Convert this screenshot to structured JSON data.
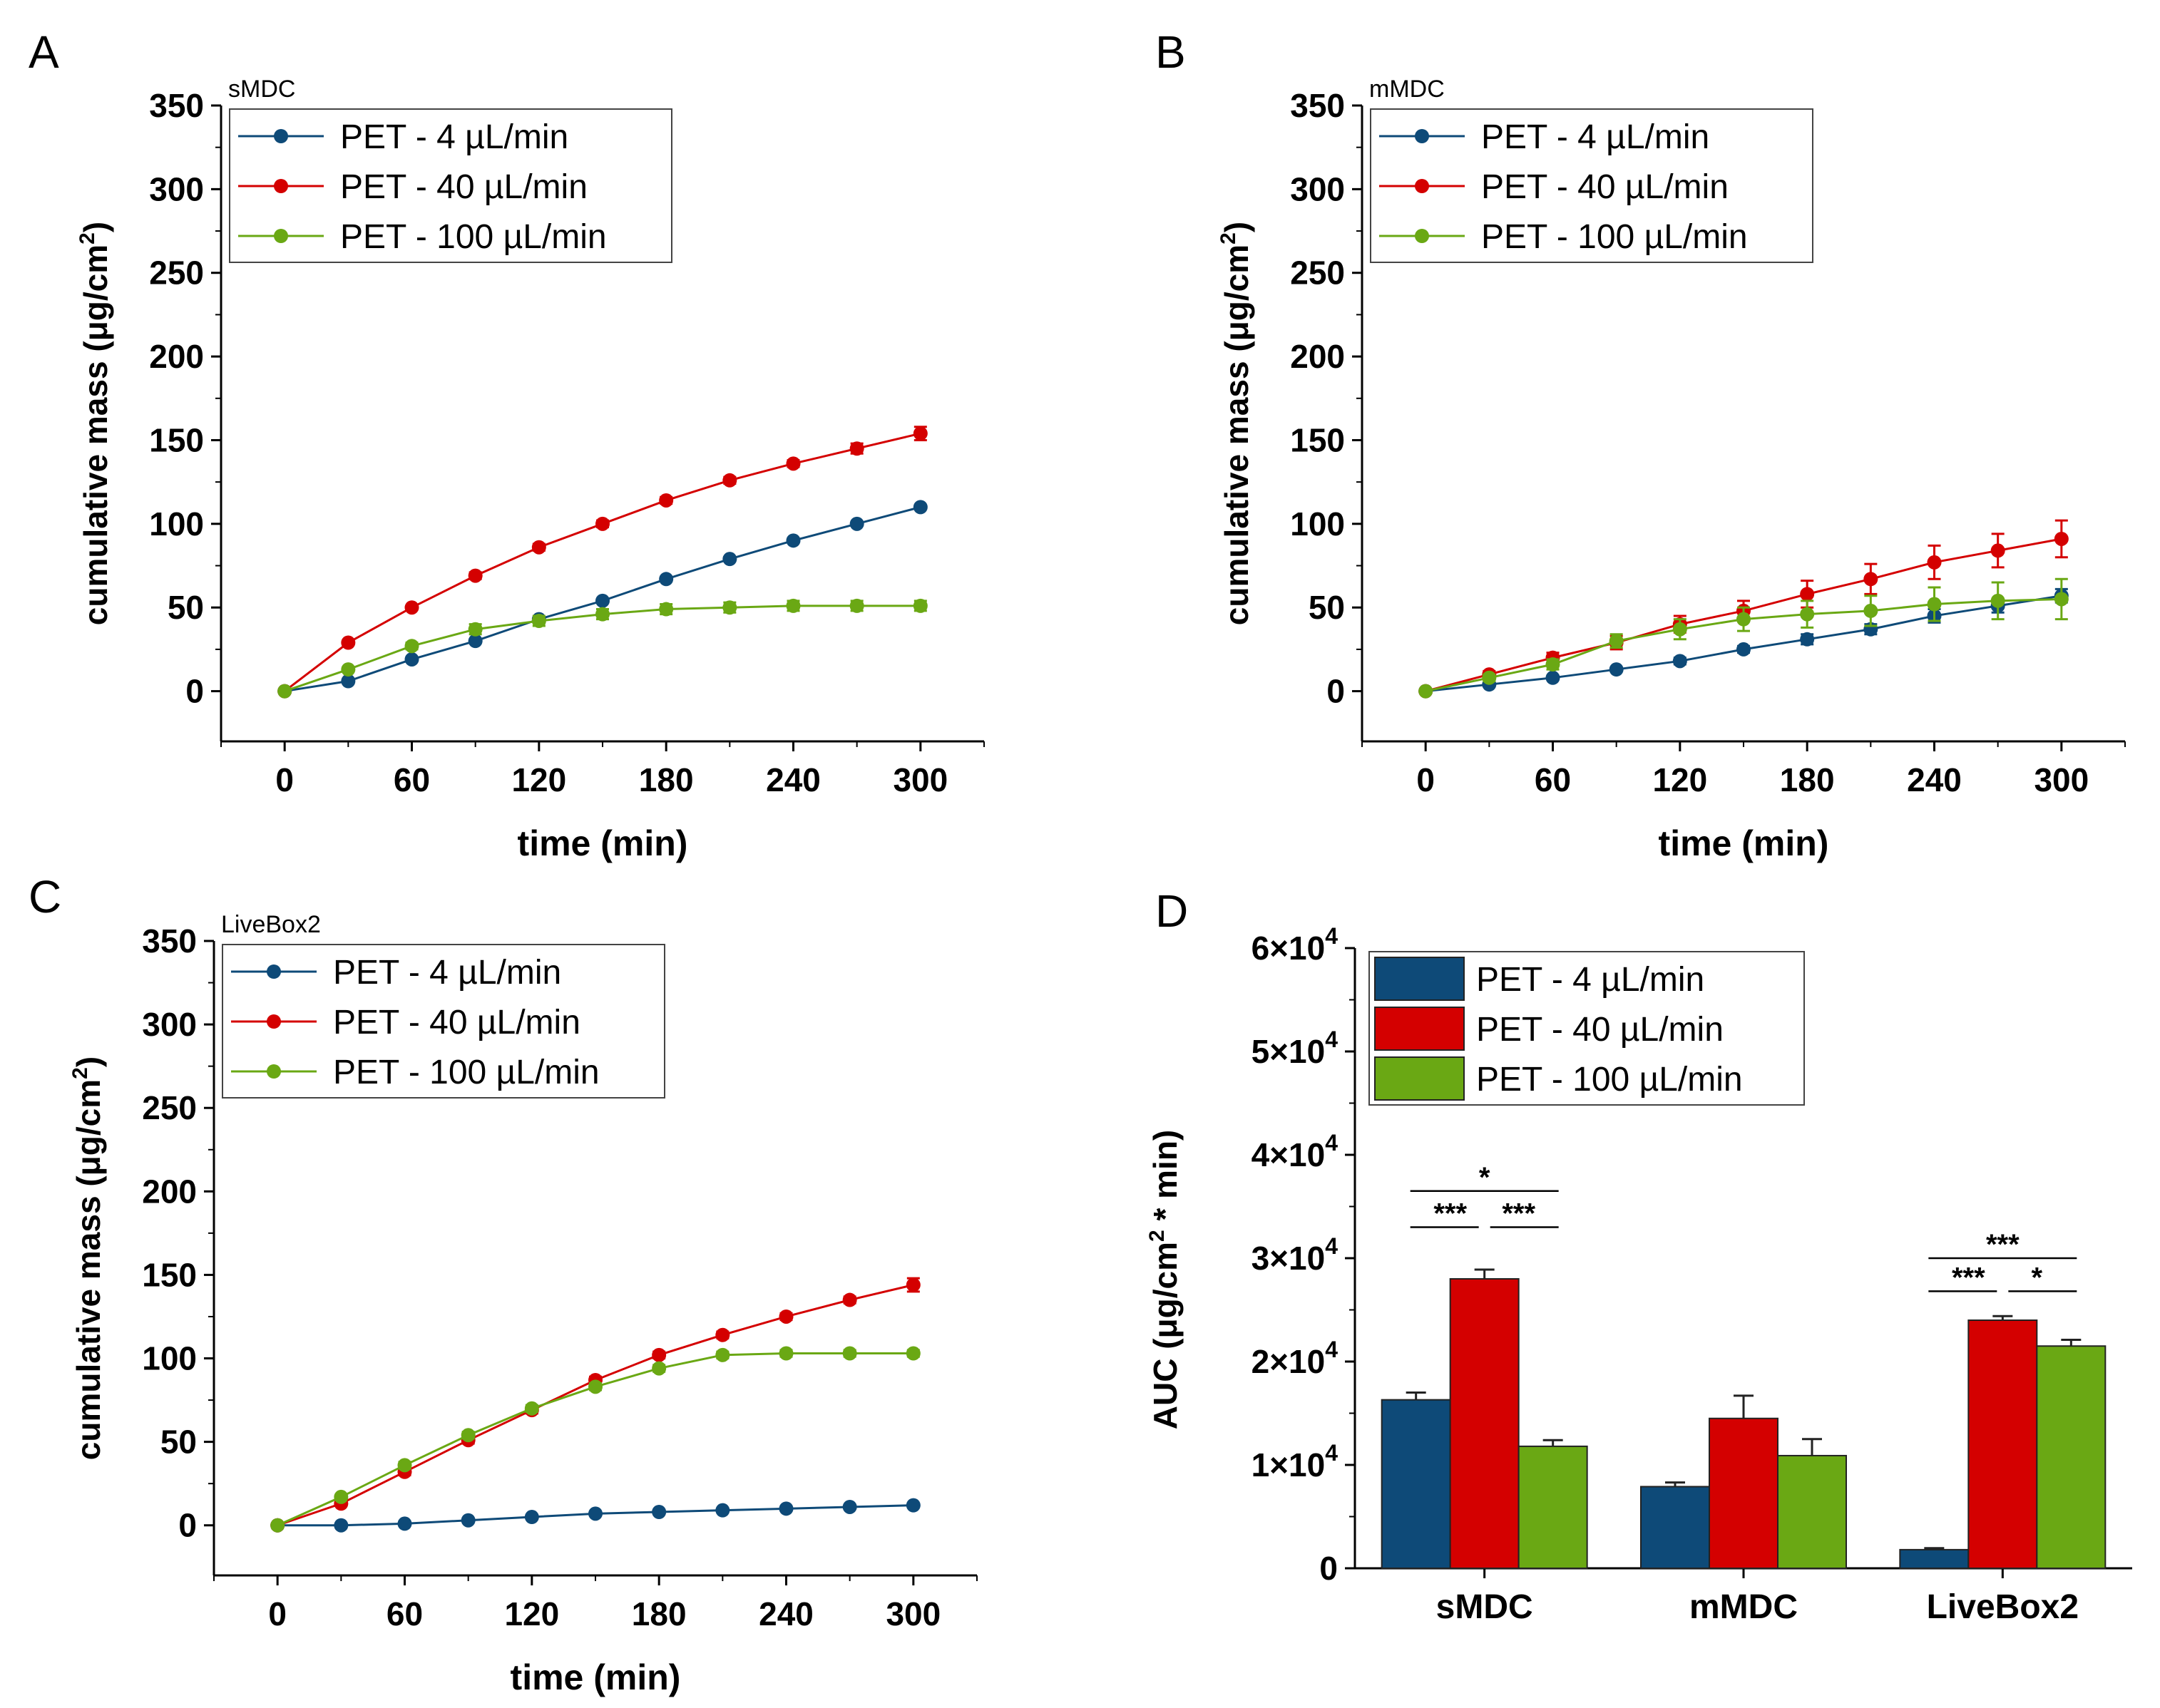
{
  "figure": {
    "panels": [
      "A",
      "B",
      "C",
      "D"
    ]
  },
  "colors": {
    "flow4": "#0e4a78",
    "flow40": "#d40000",
    "flow100": "#6aa814"
  },
  "chart_data": [
    {
      "panel": "A",
      "type": "line",
      "title": "sMDC",
      "xlabel": "time (min)",
      "ylabel": "cumulative mass (μg/cm²)",
      "xlim": [
        -30,
        330
      ],
      "ylim": [
        -30,
        350
      ],
      "xticks": [
        0,
        60,
        120,
        180,
        240,
        300
      ],
      "yticks": [
        0,
        50,
        100,
        150,
        200,
        250,
        300,
        350
      ],
      "x": [
        0,
        30,
        60,
        90,
        120,
        150,
        180,
        210,
        240,
        270,
        300
      ],
      "series": [
        {
          "name": "PET - 4 µL/min",
          "color": "#0e4a78",
          "values": [
            0,
            6,
            19,
            30,
            43,
            54,
            67,
            79,
            90,
            100,
            110
          ],
          "errors": [
            0,
            1,
            1,
            1,
            1,
            1,
            1,
            1,
            1,
            1,
            1
          ]
        },
        {
          "name": "PET - 40 µL/min",
          "color": "#d40000",
          "values": [
            0,
            29,
            50,
            69,
            86,
            100,
            114,
            126,
            136,
            145,
            154
          ],
          "errors": [
            0,
            1,
            1,
            2,
            2,
            2,
            2,
            2,
            2,
            3,
            4
          ]
        },
        {
          "name": "PET - 100 µL/min",
          "color": "#6aa814",
          "values": [
            0,
            13,
            27,
            37,
            42,
            46,
            49,
            50,
            51,
            51,
            51
          ],
          "errors": [
            0,
            1,
            2,
            3,
            3,
            3,
            3,
            3,
            3,
            3,
            3
          ]
        }
      ]
    },
    {
      "panel": "B",
      "type": "line",
      "title": "mMDC",
      "xlabel": "time (min)",
      "ylabel": "cumulative mass (μg/cm²)",
      "xlim": [
        -30,
        330
      ],
      "ylim": [
        -30,
        350
      ],
      "xticks": [
        0,
        60,
        120,
        180,
        240,
        300
      ],
      "yticks": [
        0,
        50,
        100,
        150,
        200,
        250,
        300,
        350
      ],
      "x": [
        0,
        30,
        60,
        90,
        120,
        150,
        180,
        210,
        240,
        270,
        300
      ],
      "series": [
        {
          "name": "PET - 4 µL/min",
          "color": "#0e4a78",
          "values": [
            0,
            4,
            8,
            13,
            18,
            25,
            31,
            37,
            45,
            51,
            57
          ],
          "errors": [
            0,
            1,
            1,
            1,
            2,
            2,
            3,
            3,
            4,
            4,
            4
          ]
        },
        {
          "name": "PET - 40 µL/min",
          "color": "#d40000",
          "values": [
            0,
            10,
            20,
            29,
            40,
            48,
            58,
            67,
            77,
            84,
            91
          ],
          "errors": [
            0,
            2,
            3,
            4,
            5,
            6,
            8,
            9,
            10,
            10,
            11
          ]
        },
        {
          "name": "PET - 100 µL/min",
          "color": "#6aa814",
          "values": [
            0,
            8,
            16,
            30,
            37,
            43,
            46,
            48,
            52,
            54,
            55
          ],
          "errors": [
            0,
            2,
            3,
            4,
            6,
            7,
            8,
            9,
            10,
            11,
            12
          ]
        }
      ]
    },
    {
      "panel": "C",
      "type": "line",
      "title": "LiveBox2",
      "xlabel": "time (min)",
      "ylabel": "cumulative mass (μg/cm²)",
      "xlim": [
        -30,
        330
      ],
      "ylim": [
        -30,
        350
      ],
      "xticks": [
        0,
        60,
        120,
        180,
        240,
        300
      ],
      "yticks": [
        0,
        50,
        100,
        150,
        200,
        250,
        300,
        350
      ],
      "x": [
        0,
        30,
        60,
        90,
        120,
        150,
        180,
        210,
        240,
        270,
        300
      ],
      "series": [
        {
          "name": "PET - 4 µL/min",
          "color": "#0e4a78",
          "values": [
            0,
            0,
            1,
            3,
            5,
            7,
            8,
            9,
            10,
            11,
            12
          ],
          "errors": [
            0,
            0,
            0,
            0,
            0,
            0,
            0,
            0,
            0,
            0,
            1
          ]
        },
        {
          "name": "PET - 40 µL/min",
          "color": "#d40000",
          "values": [
            0,
            13,
            32,
            51,
            69,
            87,
            102,
            114,
            125,
            135,
            144
          ],
          "errors": [
            0,
            1,
            2,
            2,
            2,
            2,
            2,
            2,
            2,
            2,
            4
          ]
        },
        {
          "name": "PET - 100 µL/min",
          "color": "#6aa814",
          "values": [
            0,
            17,
            36,
            54,
            70,
            83,
            94,
            102,
            103,
            103,
            103
          ],
          "errors": [
            0,
            1,
            2,
            2,
            2,
            2,
            2,
            2,
            2,
            2,
            2
          ]
        }
      ]
    },
    {
      "panel": "D",
      "type": "bar",
      "title": "",
      "xlabel": "",
      "ylabel": "AUC (μg/cm² * min)",
      "ylim": [
        0,
        60000
      ],
      "yticks": [
        0,
        10000,
        20000,
        30000,
        40000,
        50000,
        60000
      ],
      "ytick_labels": [
        {
          "mantissa": "0",
          "exp": ""
        },
        {
          "mantissa": "1×10",
          "exp": "4"
        },
        {
          "mantissa": "2×10",
          "exp": "4"
        },
        {
          "mantissa": "3×10",
          "exp": "4"
        },
        {
          "mantissa": "4×10",
          "exp": "4"
        },
        {
          "mantissa": "5×10",
          "exp": "4"
        },
        {
          "mantissa": "6×10",
          "exp": "4"
        }
      ],
      "categories": [
        "sMDC",
        "mMDC",
        "LiveBox2"
      ],
      "series": [
        {
          "name": "PET  - 4 µL/min",
          "color": "#0e4a78",
          "values": [
            16300,
            7900,
            1800
          ],
          "errors": [
            700,
            400,
            150
          ]
        },
        {
          "name": "PET - 40 µL/min",
          "color": "#d40000",
          "values": [
            28000,
            14500,
            24000
          ],
          "errors": [
            900,
            2200,
            400
          ]
        },
        {
          "name": "PET - 100 µL/min",
          "color": "#6aa814",
          "values": [
            11800,
            10900,
            21500
          ],
          "errors": [
            600,
            1600,
            600
          ]
        }
      ],
      "significance": [
        {
          "label": "*",
          "category": 0,
          "from": 0,
          "to": 2,
          "level": 36500
        },
        {
          "label": "***",
          "category": 0,
          "from": 0,
          "to": 1,
          "level": 33000
        },
        {
          "label": "***",
          "category": 0,
          "from": 1,
          "to": 2,
          "level": 33000
        },
        {
          "label": "***",
          "category": 2,
          "from": 0,
          "to": 2,
          "level": 30000
        },
        {
          "label": "***",
          "category": 2,
          "from": 0,
          "to": 1,
          "level": 26800
        },
        {
          "label": "*",
          "category": 2,
          "from": 1,
          "to": 2,
          "level": 26800
        }
      ]
    }
  ]
}
